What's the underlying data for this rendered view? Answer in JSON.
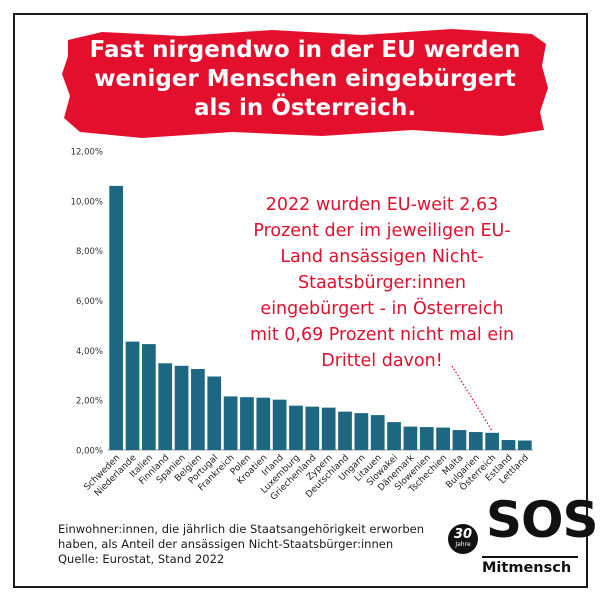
{
  "title_lines": [
    "Fast nirgendwo in der EU werden",
    "weniger Menschen eingebürgert",
    "als in Österreich."
  ],
  "annotation_lines": [
    "2022 wurden EU-weit 2,63",
    "Prozent der im jeweiligen EU-",
    "Land ansässigen Nicht-",
    "Staatsbürger:innen",
    "eingebürgert - in Österreich",
    "mit 0,69 Prozent nicht mal ein",
    "Drittel davon!"
  ],
  "note_lines": [
    "Einwohner:innen, die jährlich die Staatsangehörigkeit erworben",
    "haben, als Anteil der ansässigen Nicht-Staatsbürger:innen",
    "Quelle: Eurostat, Stand 2022"
  ],
  "logo": {
    "wordmark": "SOS",
    "anniversary_number": "30",
    "anniversary_word": "Jahre",
    "subtitle": "Mitmensch"
  },
  "colors": {
    "bar": "#1d6782",
    "banner": "#e30f2d",
    "annotation": "#e30f2d",
    "text": "#1a1a1a"
  },
  "chart_data": {
    "type": "bar",
    "categories": [
      "Schweden",
      "Niederlande",
      "Italien",
      "Finnland",
      "Spanien",
      "Belgien",
      "Portugal",
      "Frankreich",
      "Polen",
      "Kroatien",
      "Irland",
      "Luxemburg",
      "Griechenland",
      "Zypern",
      "Deutschland",
      "Ungarn",
      "Litauen",
      "Slowakei",
      "Dänemark",
      "Slowenien",
      "Tschechien",
      "Malta",
      "Bulgarien",
      "Österreich",
      "Estland",
      "Lettland"
    ],
    "values": [
      10.6,
      4.35,
      4.25,
      3.48,
      3.38,
      3.25,
      2.95,
      2.15,
      2.12,
      2.1,
      2.02,
      1.78,
      1.74,
      1.7,
      1.54,
      1.48,
      1.4,
      1.12,
      0.94,
      0.92,
      0.9,
      0.8,
      0.72,
      0.69,
      0.4,
      0.38
    ],
    "yticks": [
      "0,00%",
      "2,00%",
      "4,00%",
      "6,00%",
      "8,00%",
      "10,00%",
      "12,00%"
    ],
    "ylim": [
      0,
      12
    ],
    "grid": false,
    "title": "",
    "xlabel": "",
    "ylabel": "",
    "annotation_target": "Österreich"
  }
}
